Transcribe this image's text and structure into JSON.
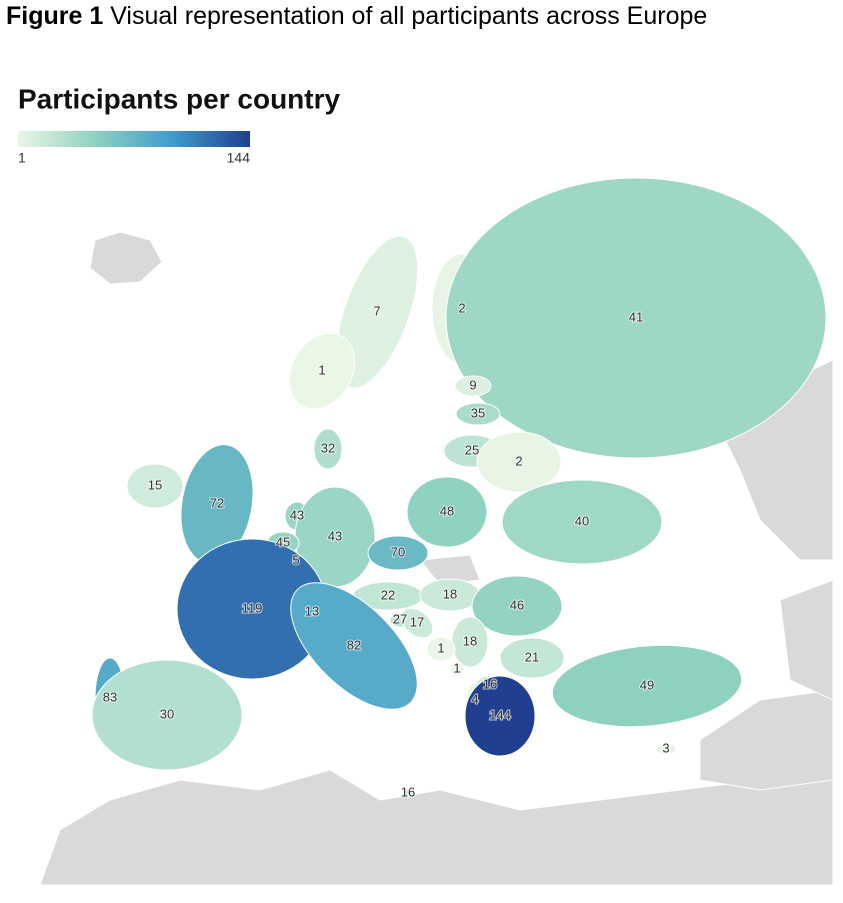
{
  "figure_caption": {
    "label": "Figure 1",
    "text": "Visual representation of all participants across Europe"
  },
  "chart_data": {
    "type": "choropleth",
    "title": "Participants per country",
    "colorlim": [
      1,
      144
    ],
    "colors": [
      "#eaf6e6",
      "#8fd1c0",
      "#3f9bcb",
      "#213f8f"
    ],
    "values": [
      7,
      2,
      41,
      1,
      9,
      35,
      32,
      25,
      2,
      15,
      72,
      43,
      48,
      40,
      43,
      45,
      5,
      70,
      119,
      22,
      18,
      46,
      13,
      27,
      17,
      82,
      18,
      1,
      21,
      1,
      16,
      49,
      83,
      4,
      30,
      144,
      3,
      16
    ]
  }
}
